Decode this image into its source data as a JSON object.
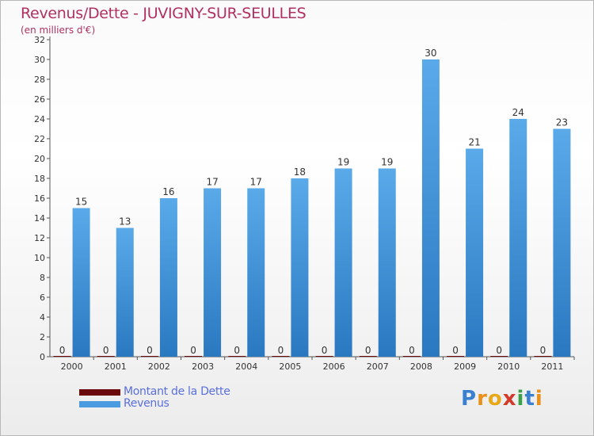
{
  "header": {
    "title": "Revenus/Dette - JUVIGNY-SUR-SEULLES",
    "subtitle": "(en milliers d'€)"
  },
  "colors": {
    "title": "#b03060",
    "debt": "#6b0a0a",
    "revenue": "#4a9be0",
    "legend_text": "#5a6fdc"
  },
  "legend": {
    "items": [
      {
        "label": "Montant de la Dette",
        "color": "#6b0a0a"
      },
      {
        "label": "Revenus",
        "color": "#4a9be0"
      }
    ]
  },
  "brand": {
    "letters": [
      "P",
      "r",
      "o",
      "x",
      "i",
      "t",
      "i"
    ]
  },
  "chart_data": {
    "type": "bar",
    "categories": [
      "2000",
      "2001",
      "2002",
      "2003",
      "2004",
      "2005",
      "2006",
      "2007",
      "2008",
      "2009",
      "2010",
      "2011"
    ],
    "series": [
      {
        "name": "Montant de la Dette",
        "values": [
          0,
          0,
          0,
          0,
          0,
          0,
          0,
          0,
          0,
          0,
          0,
          0
        ]
      },
      {
        "name": "Revenus",
        "values": [
          15,
          13,
          16,
          17,
          17,
          18,
          19,
          19,
          30,
          21,
          24,
          23
        ]
      }
    ],
    "ylim": [
      0,
      32
    ],
    "yticks": [
      0,
      2,
      4,
      6,
      8,
      10,
      12,
      14,
      16,
      18,
      20,
      22,
      24,
      26,
      28,
      30,
      32
    ],
    "xlabel": "",
    "ylabel": "",
    "grid": false,
    "legend_position": "bottom-left"
  }
}
